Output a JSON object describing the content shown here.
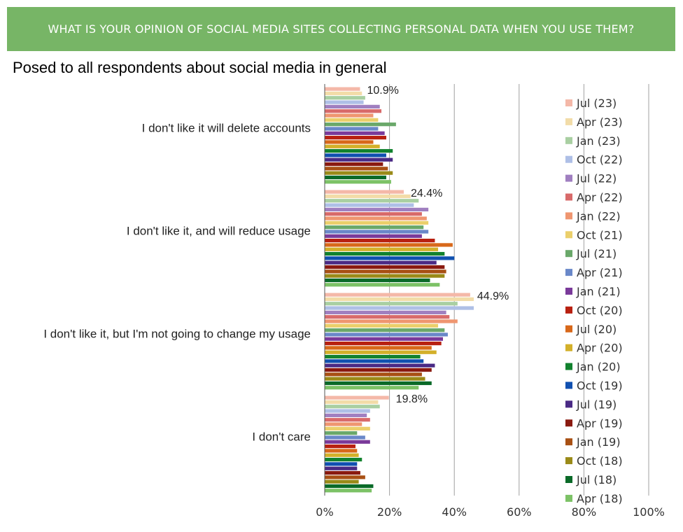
{
  "header": {
    "title": "WHAT IS YOUR OPINION OF SOCIAL MEDIA SITES COLLECTING PERSONAL DATA WHEN YOU USE THEM?",
    "subtitle": "Posed to all respondents about social media in general"
  },
  "chart_data": {
    "type": "bar",
    "orientation": "horizontal",
    "categories": [
      "I don't like it will delete accounts",
      "I don't like it, and will reduce usage",
      "I don't like it, but I'm not going to change my usage",
      "I don't care"
    ],
    "xlim": [
      0,
      100
    ],
    "x_ticks": [
      "0%",
      "20%",
      "40%",
      "60%",
      "80%",
      "100%"
    ],
    "grid": true,
    "legend_position": "right",
    "data_labels": [
      "10.9%",
      "24.4%",
      "44.9%",
      "19.8%"
    ],
    "series": [
      {
        "name": "Jul (23)",
        "color": "#f4b8a8",
        "values": [
          10.9,
          24.4,
          44.9,
          19.8
        ]
      },
      {
        "name": "Apr (23)",
        "color": "#f2dca8",
        "values": [
          11.5,
          26.5,
          46.0,
          16.5
        ]
      },
      {
        "name": "Jan (23)",
        "color": "#a9cfa2",
        "values": [
          12.5,
          29.0,
          41.0,
          17.0
        ]
      },
      {
        "name": "Oct (22)",
        "color": "#aebfe6",
        "values": [
          12.0,
          27.5,
          46.0,
          14.0
        ]
      },
      {
        "name": "Jul (22)",
        "color": "#a07fc0",
        "values": [
          17.0,
          32.0,
          37.5,
          13.0
        ]
      },
      {
        "name": "Apr (22)",
        "color": "#d86a6a",
        "values": [
          17.5,
          30.0,
          38.5,
          14.0
        ]
      },
      {
        "name": "Jan (22)",
        "color": "#ef9670",
        "values": [
          15.0,
          31.5,
          41.0,
          11.5
        ]
      },
      {
        "name": "Oct (21)",
        "color": "#ebcf6b",
        "values": [
          16.5,
          32.0,
          35.0,
          14.0
        ]
      },
      {
        "name": "Jul (21)",
        "color": "#6aa86a",
        "values": [
          22.0,
          30.5,
          37.0,
          10.0
        ]
      },
      {
        "name": "Apr (21)",
        "color": "#6a88c9",
        "values": [
          16.5,
          32.0,
          38.0,
          12.5
        ]
      },
      {
        "name": "Jan (21)",
        "color": "#7a3a9a",
        "values": [
          18.5,
          30.0,
          36.5,
          14.0
        ]
      },
      {
        "name": "Oct (20)",
        "color": "#b82010",
        "values": [
          19.0,
          34.0,
          36.0,
          9.5
        ]
      },
      {
        "name": "Jul (20)",
        "color": "#d8681a",
        "values": [
          15.0,
          39.5,
          33.0,
          10.0
        ]
      },
      {
        "name": "Apr (20)",
        "color": "#d3b02a",
        "values": [
          17.0,
          35.0,
          34.5,
          10.5
        ]
      },
      {
        "name": "Jan (20)",
        "color": "#12822e",
        "values": [
          21.0,
          37.0,
          29.5,
          11.5
        ]
      },
      {
        "name": "Oct (19)",
        "color": "#1050b0",
        "values": [
          19.0,
          40.0,
          30.5,
          10.0
        ]
      },
      {
        "name": "Jul (19)",
        "color": "#4a2a85",
        "values": [
          21.0,
          34.5,
          34.0,
          10.0
        ]
      },
      {
        "name": "Apr (19)",
        "color": "#8a1a10",
        "values": [
          18.0,
          37.0,
          33.0,
          11.0
        ]
      },
      {
        "name": "Jan (19)",
        "color": "#a85014",
        "values": [
          19.5,
          37.5,
          30.0,
          12.5
        ]
      },
      {
        "name": "Oct (18)",
        "color": "#9a8a18",
        "values": [
          21.0,
          37.0,
          31.0,
          10.5
        ]
      },
      {
        "name": "Jul (18)",
        "color": "#0a6a28",
        "values": [
          19.0,
          32.5,
          33.0,
          15.0
        ]
      },
      {
        "name": "Apr (18)",
        "color": "#7cc266",
        "values": [
          20.5,
          35.5,
          29.0,
          14.5
        ]
      }
    ]
  }
}
